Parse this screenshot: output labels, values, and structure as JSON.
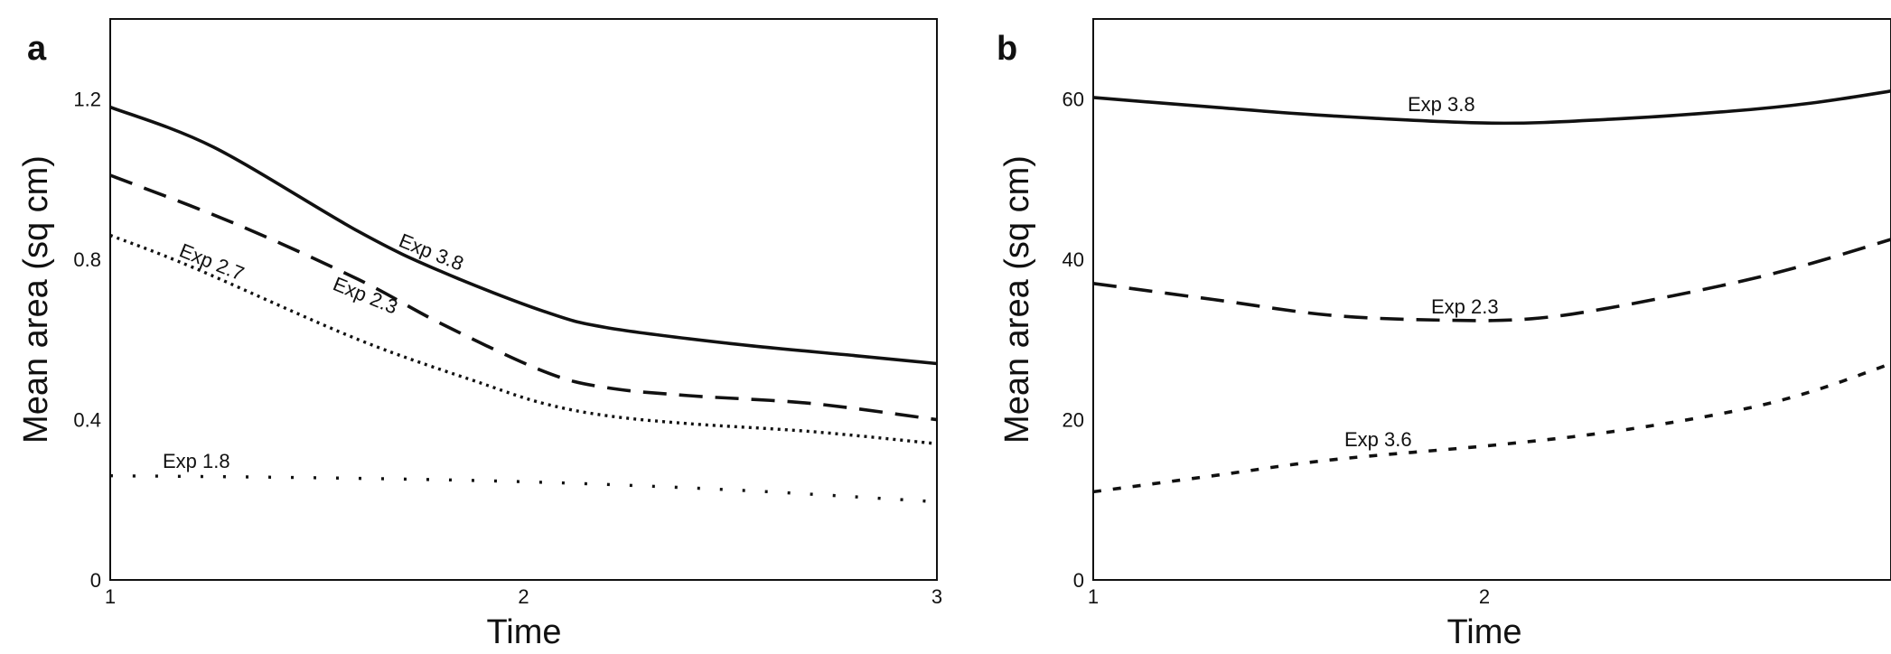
{
  "chart_data": [
    {
      "type": "line",
      "panel_label": "a",
      "xlabel": "Time",
      "ylabel": "Mean area (sq cm)",
      "xlim": [
        1,
        3
      ],
      "ylim": [
        0,
        1.4
      ],
      "xticks": [
        "1",
        "2",
        "3"
      ],
      "yticks": [
        "0",
        "0.4",
        "0.8",
        "1.2"
      ],
      "series": [
        {
          "name": "Exp 3.8",
          "style": "solid",
          "x": [
            1.0,
            1.25,
            1.6,
            1.8,
            2.05,
            2.2,
            2.5,
            2.8,
            3.0
          ],
          "y": [
            1.18,
            1.08,
            0.87,
            0.77,
            0.67,
            0.63,
            0.59,
            0.56,
            0.54
          ]
        },
        {
          "name": "Exp 2.3",
          "style": "dashed",
          "x": [
            1.0,
            1.3,
            1.6,
            1.8,
            2.05,
            2.2,
            2.4,
            2.7,
            3.0
          ],
          "y": [
            1.01,
            0.89,
            0.75,
            0.64,
            0.52,
            0.48,
            0.46,
            0.44,
            0.4
          ]
        },
        {
          "name": "Exp 2.7",
          "style": "dotted",
          "x": [
            1.0,
            1.2,
            1.6,
            1.9,
            2.05,
            2.2,
            2.4,
            2.7,
            3.0
          ],
          "y": [
            0.86,
            0.78,
            0.6,
            0.49,
            0.44,
            0.41,
            0.39,
            0.37,
            0.34
          ]
        },
        {
          "name": "Exp 1.8",
          "style": "sparse-dotted",
          "x": [
            1.0,
            1.5,
            2.0,
            2.5,
            3.0
          ],
          "y": [
            0.26,
            0.255,
            0.245,
            0.225,
            0.195
          ]
        }
      ]
    },
    {
      "type": "line",
      "panel_label": "b",
      "xlabel": "Time",
      "ylabel": "Mean area (sq cm)",
      "xlim": [
        1,
        3
      ],
      "ylim": [
        0,
        70
      ],
      "xticks": [
        "1",
        "2"
      ],
      "yticks": [
        "0",
        "20",
        "40",
        "60"
      ],
      "series": [
        {
          "name": "Exp 3.8",
          "style": "solid",
          "x": [
            1.0,
            1.3,
            1.6,
            2.0,
            2.3,
            2.6,
            2.8,
            3.0
          ],
          "y": [
            60.2,
            59.0,
            57.9,
            57.0,
            57.5,
            58.5,
            59.5,
            61.0
          ]
        },
        {
          "name": "Exp 2.3",
          "style": "dashed",
          "x": [
            1.0,
            1.3,
            1.6,
            1.9,
            2.1,
            2.3,
            2.6,
            2.8,
            3.0
          ],
          "y": [
            37.0,
            35.0,
            33.0,
            32.4,
            32.6,
            34.0,
            37.0,
            39.5,
            42.5
          ]
        },
        {
          "name": "Exp 3.6",
          "style": "short-dashed",
          "x": [
            1.0,
            1.3,
            1.6,
            2.0,
            2.3,
            2.6,
            2.8,
            3.0
          ],
          "y": [
            11.0,
            13.0,
            15.0,
            16.8,
            18.5,
            21.0,
            23.5,
            27.0
          ]
        }
      ]
    }
  ]
}
